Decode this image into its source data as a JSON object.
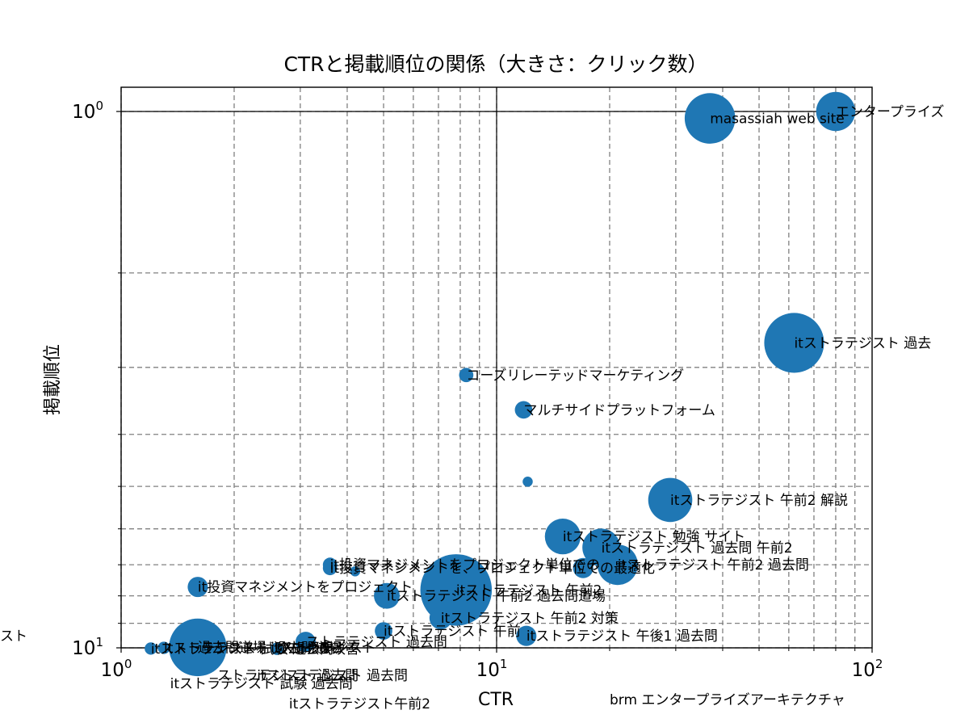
{
  "chart_data": {
    "type": "scatter",
    "title": "CTRと掲載順位の関係（大きさ：クリック数）",
    "xlabel": "CTR",
    "ylabel": "掲載順位",
    "xscale": "log",
    "yscale": "log",
    "y_inverted": true,
    "xlim": [
      1,
      100
    ],
    "ylim": [
      10,
      1
    ],
    "grid": true,
    "color": "#1f77b4",
    "x_ticks": [
      {
        "value": 1,
        "base": "10",
        "exp": "0"
      },
      {
        "value": 10,
        "base": "10",
        "exp": "1"
      },
      {
        "value": 100,
        "base": "10",
        "exp": "2"
      }
    ],
    "y_ticks": [
      {
        "value": 1,
        "base": "10",
        "exp": "0"
      },
      {
        "value": 10,
        "base": "10",
        "exp": "1"
      }
    ],
    "points": [
      {
        "label": "エンタープライズ",
        "ctr": 80,
        "position": 1.0,
        "clicks": 3
      },
      {
        "label": "masassiah web site",
        "ctr": 37,
        "position": 1.03,
        "clicks": 5
      },
      {
        "label": "itストラテジスト 過去",
        "ctr": 62,
        "position": 2.7,
        "clicks": 7
      },
      {
        "label": "コーズリレーテッドマーケティング",
        "ctr": 8.3,
        "position": 3.1,
        "clicks": 0.4
      },
      {
        "label": "マルチサイドプラットフォーム",
        "ctr": 11.8,
        "position": 3.6,
        "clicks": 0.6
      },
      {
        "label": "",
        "ctr": 12.1,
        "position": 4.9,
        "clicks": 0.2
      },
      {
        "label": "itストラテジスト 午前2 解説",
        "ctr": 29,
        "position": 5.3,
        "clicks": 3.8
      },
      {
        "label": "itストラテジスト 勉強 サイト",
        "ctr": 15,
        "position": 6.2,
        "clicks": 2.5
      },
      {
        "label": "itストラテジスト 過去問 午前2",
        "ctr": 19,
        "position": 6.5,
        "clicks": 2.8
      },
      {
        "label": "itストラテジスト 午前2 過去問",
        "ctr": 21,
        "position": 7.0,
        "clicks": 3.2
      },
      {
        "label": "it投資マネジメントをプロジェクト単位での",
        "ctr": 3.6,
        "position": 7.0,
        "clicks": 0.4
      },
      {
        "label": "it投資マネジメントを、プロジェクト単位での最適化",
        "ctr": 3.6,
        "position": 7.1,
        "clicks": 0.4
      },
      {
        "label": "",
        "ctr": 4.2,
        "position": 7.2,
        "clicks": 0.2
      },
      {
        "label": "",
        "ctr": 17,
        "position": 7.1,
        "clicks": 0.8
      },
      {
        "label": "it投資マネジメントをプロジェクト",
        "ctr": 1.6,
        "position": 7.7,
        "clicks": 0.8
      },
      {
        "label": "itストラテジスト 午前2",
        "ctr": 7.8,
        "position": 7.8,
        "clicks": 10
      },
      {
        "label": "itストラテジスト 午前2 過去問道場",
        "ctr": 5.1,
        "position": 8.0,
        "clicks": 1.3
      },
      {
        "label": "itストラテジスト 午前2 対策",
        "ctr": 7.1,
        "position": 8.8,
        "clicks": 1.0
      },
      {
        "label": "itストラテジスト 午前",
        "ctr": 5.0,
        "position": 9.3,
        "clicks": 0.6
      },
      {
        "label": "itストラテジスト 午後1 過去問",
        "ctr": 12.0,
        "position": 9.5,
        "clicks": 0.8
      },
      {
        "label": "ストラテジスト 過去問",
        "ctr": 3.1,
        "position": 9.75,
        "clicks": 0.8
      },
      {
        "label": "過去問道場 itストラテジスト",
        "ctr": 1.6,
        "position": 9.98,
        "clicks": 6.5
      },
      {
        "label": "itストラテジスト 過去問道場",
        "ctr": 1.3,
        "position": 10.0,
        "clicks": 0.3
      },
      {
        "label": "itストラテジスト 試験 過去問",
        "ctr": 1.2,
        "position": 10.03,
        "clicks": 0.3
      },
      {
        "label": "プロセス改善",
        "ctr": 2.6,
        "position": 10.04,
        "clicks": 0.3
      }
    ],
    "annotations": [
      {
        "text": "itストラテジスト 過去問",
        "ctr": 2.3,
        "position": 10.06
      },
      {
        "text": "ストラテジスト 過去問",
        "ctr": 1.8,
        "position": 10.06
      },
      {
        "text": "itストラテジスト 試験 過去問",
        "ctr": 1.35,
        "position": 10.05
      },
      {
        "text": "itストラテジスト午前2",
        "ctr": 2.8,
        "position": 10.07
      },
      {
        "text": "brm エンタープライズアーキテクチャ",
        "ctr": 20,
        "position": 10.08
      },
      {
        "text": "スト",
        "ctr": 0.4,
        "position": 9.9
      }
    ]
  }
}
